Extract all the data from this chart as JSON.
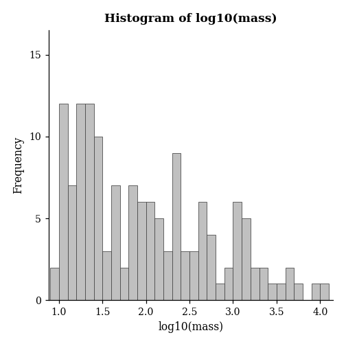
{
  "title": "Histogram of log10(mass)",
  "xlabel": "log10(mass)",
  "ylabel": "Frequency",
  "bar_color": "#c0c0c0",
  "edge_color": "#444444",
  "bin_edges": [
    0.9,
    1.0,
    1.1,
    1.2,
    1.3,
    1.4,
    1.5,
    1.6,
    1.7,
    1.8,
    1.9,
    2.0,
    2.1,
    2.2,
    2.3,
    2.4,
    2.5,
    2.6,
    2.7,
    2.8,
    2.9,
    3.0,
    3.1,
    3.2,
    3.3,
    3.4,
    3.5,
    3.6,
    3.7,
    3.8,
    3.9,
    4.0,
    4.1
  ],
  "frequencies": [
    2,
    12,
    7,
    12,
    12,
    10,
    3,
    7,
    2,
    7,
    6,
    6,
    5,
    3,
    9,
    3,
    3,
    6,
    4,
    1,
    2,
    6,
    5,
    2,
    2,
    1,
    1,
    2,
    1,
    0,
    1,
    1
  ],
  "xlim": [
    0.88,
    4.15
  ],
  "ylim": [
    0,
    16.5
  ],
  "xticks": [
    1.0,
    1.5,
    2.0,
    2.5,
    3.0,
    3.5,
    4.0
  ],
  "yticks": [
    0,
    5,
    10,
    15
  ],
  "background_color": "#ffffff",
  "title_fontsize": 11,
  "label_fontsize": 10,
  "tick_fontsize": 9,
  "figsize": [
    4.5,
    4.5
  ],
  "dpi": 112
}
